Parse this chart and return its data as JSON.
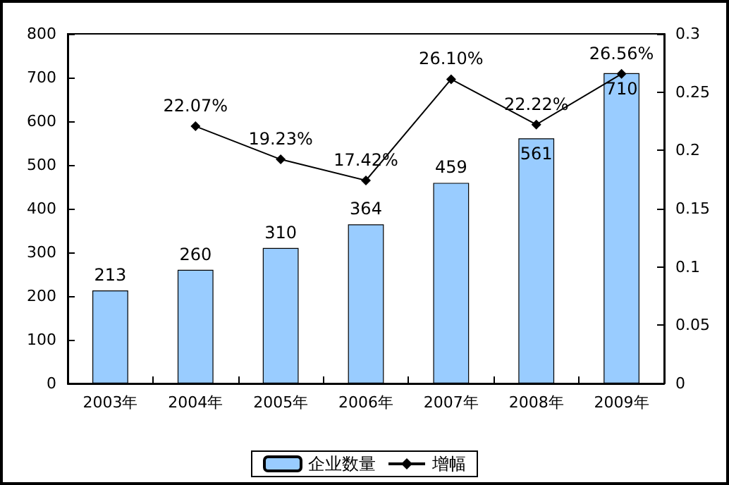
{
  "chart_data": {
    "type": "bar",
    "categories": [
      "2003年",
      "2004年",
      "2005年",
      "2006年",
      "2007年",
      "2008年",
      "2009年"
    ],
    "series": [
      {
        "name": "企业数量",
        "color": "#99ccff",
        "values": [
          213,
          260,
          310,
          364,
          459,
          561,
          710
        ],
        "value_labels": [
          "213",
          "260",
          "310",
          "364",
          "459",
          "561",
          "710"
        ]
      },
      {
        "name": "增幅",
        "type": "line",
        "axis": "y2",
        "color": "#000000",
        "values": [
          null,
          0.2207,
          0.1923,
          0.1742,
          0.261,
          0.2222,
          0.2656
        ],
        "value_labels": [
          null,
          "22.07%",
          "19.23%",
          "17.42%",
          "26.10%",
          "22.22%",
          "26.56%"
        ]
      }
    ],
    "ylim": [
      0,
      800
    ],
    "yticks": [
      0,
      100,
      200,
      300,
      400,
      500,
      600,
      700,
      800
    ],
    "y2lim": [
      0,
      0.3
    ],
    "y2ticks": [
      0,
      0.05,
      0.1,
      0.15,
      0.2,
      0.25,
      0.3
    ],
    "marker": "diamond",
    "line_style": "solid",
    "grid": false,
    "legend": "bottom"
  }
}
